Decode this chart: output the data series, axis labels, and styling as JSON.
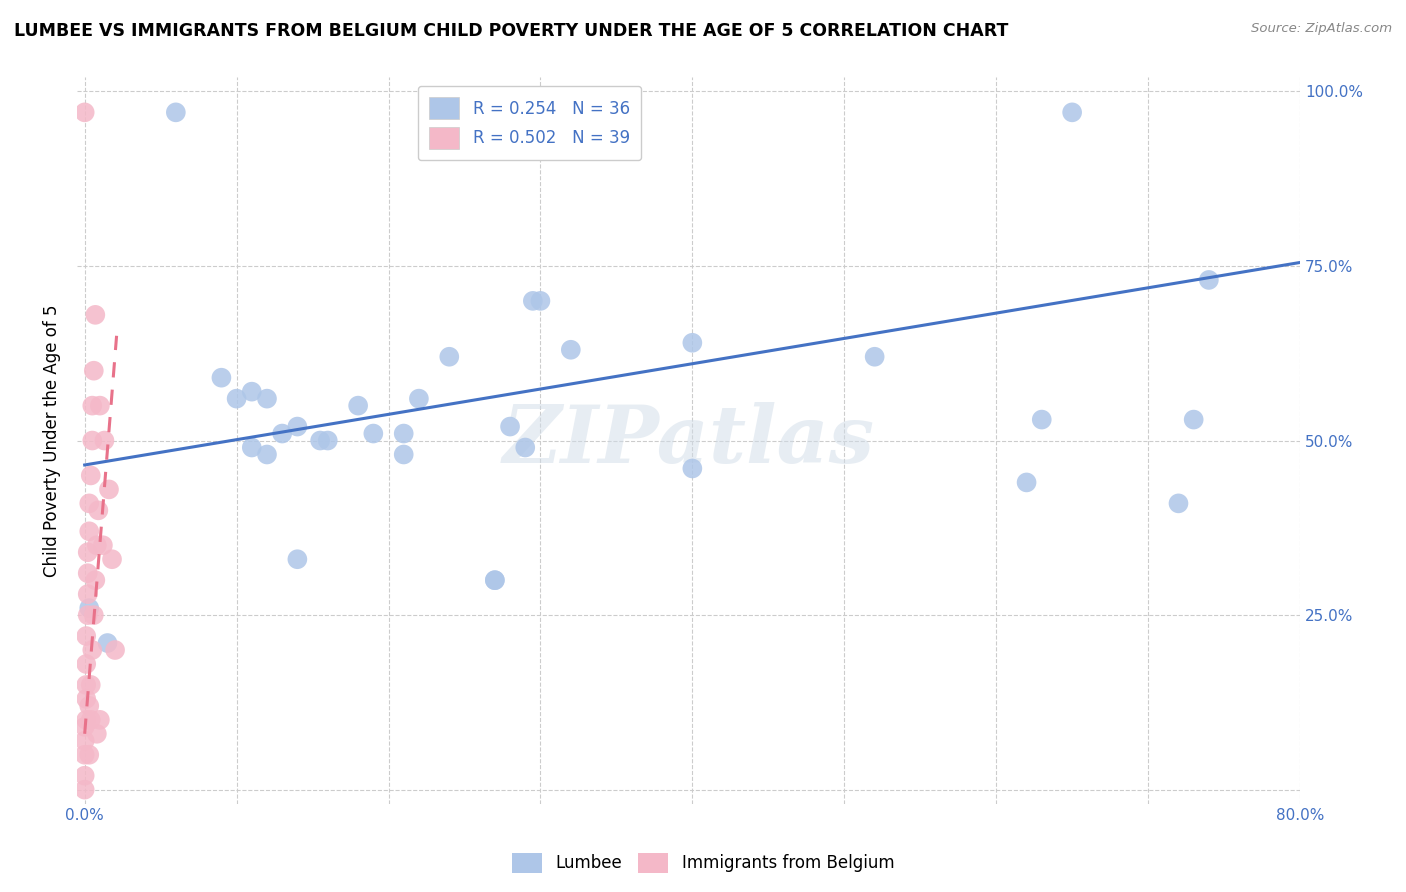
{
  "title": "LUMBEE VS IMMIGRANTS FROM BELGIUM CHILD POVERTY UNDER THE AGE OF 5 CORRELATION CHART",
  "source": "Source: ZipAtlas.com",
  "ylabel": "Child Poverty Under the Age of 5",
  "xlim": [
    -0.005,
    0.8
  ],
  "ylim": [
    -0.02,
    1.02
  ],
  "lumbee_color": "#aec6e8",
  "belgium_color": "#f4b8c8",
  "lumbee_line_color": "#4472c4",
  "belgium_line_color": "#e8728a",
  "watermark_text": "ZIPatlas",
  "lumbee_x": [
    0.003,
    0.015,
    0.06,
    0.09,
    0.1,
    0.11,
    0.11,
    0.12,
    0.12,
    0.13,
    0.14,
    0.14,
    0.155,
    0.16,
    0.18,
    0.19,
    0.21,
    0.21,
    0.22,
    0.24,
    0.27,
    0.27,
    0.28,
    0.29,
    0.3,
    0.32,
    0.4,
    0.4,
    0.52,
    0.62,
    0.63,
    0.65,
    0.72,
    0.73,
    0.74,
    0.295
  ],
  "lumbee_y": [
    0.26,
    0.21,
    0.97,
    0.59,
    0.56,
    0.57,
    0.49,
    0.56,
    0.48,
    0.51,
    0.52,
    0.33,
    0.5,
    0.5,
    0.55,
    0.51,
    0.51,
    0.48,
    0.56,
    0.62,
    0.3,
    0.3,
    0.52,
    0.49,
    0.7,
    0.63,
    0.46,
    0.64,
    0.62,
    0.44,
    0.53,
    0.97,
    0.41,
    0.53,
    0.73,
    0.7
  ],
  "belgium_x": [
    0.0,
    0.0,
    0.0,
    0.0,
    0.0,
    0.0,
    0.001,
    0.001,
    0.001,
    0.001,
    0.001,
    0.002,
    0.002,
    0.002,
    0.002,
    0.003,
    0.003,
    0.003,
    0.003,
    0.004,
    0.004,
    0.004,
    0.005,
    0.005,
    0.005,
    0.006,
    0.006,
    0.007,
    0.007,
    0.008,
    0.008,
    0.009,
    0.01,
    0.01,
    0.012,
    0.013,
    0.016,
    0.018,
    0.02
  ],
  "belgium_y": [
    0.0,
    0.02,
    0.05,
    0.07,
    0.09,
    0.97,
    0.1,
    0.13,
    0.15,
    0.18,
    0.22,
    0.25,
    0.28,
    0.31,
    0.34,
    0.05,
    0.12,
    0.37,
    0.41,
    0.1,
    0.15,
    0.45,
    0.2,
    0.5,
    0.55,
    0.25,
    0.6,
    0.3,
    0.68,
    0.08,
    0.35,
    0.4,
    0.1,
    0.55,
    0.35,
    0.5,
    0.43,
    0.33,
    0.2
  ],
  "lumbee_trendline_x": [
    0.0,
    0.8
  ],
  "lumbee_trendline_y": [
    0.465,
    0.755
  ],
  "belgium_trendline_x": [
    0.0,
    0.021
  ],
  "belgium_trendline_y": [
    0.08,
    0.65
  ]
}
